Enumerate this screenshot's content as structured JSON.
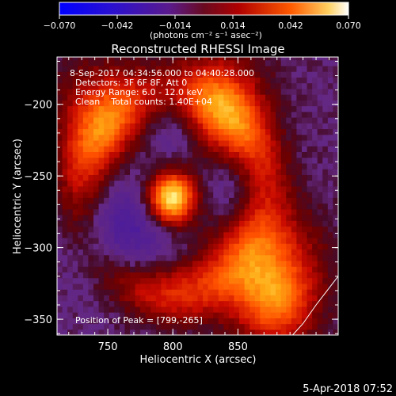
{
  "chart_data": {
    "type": "heatmap",
    "title": "Reconstructed RHESSI Image",
    "xlabel": "Heliocentric X (arcsec)",
    "ylabel": "Heliocentric Y (arcsec)",
    "xlim": [
      711,
      927
    ],
    "ylim": [
      -361,
      -167
    ],
    "x_ticks": [
      750,
      800,
      850
    ],
    "x_tick_labels": [
      "750",
      "800",
      "850"
    ],
    "y_ticks": [
      -200,
      -250,
      -300,
      -350
    ],
    "y_tick_labels": [
      "−200",
      "−250",
      "−300",
      "−350"
    ],
    "colorbar": {
      "min": -0.07,
      "max": 0.07,
      "ticks": [
        -0.07,
        -0.042,
        -0.014,
        0.014,
        0.042,
        0.07
      ],
      "tick_labels": [
        "−0.070",
        "−0.042",
        "−0.014",
        "0.014",
        "0.042",
        "0.070"
      ],
      "unit_label": "(photons cm⁻² s⁻¹ asec⁻²)",
      "colors": [
        "#0000ff",
        "#3a00a0",
        "#5a1a8c",
        "#8a0000",
        "#e01000",
        "#ff8a00",
        "#ffffff"
      ]
    },
    "annotations": [
      "8-Sep-2017 04:34:56.000 to 04:40:28.000",
      "Detectors: 3F 6F 8F, Att 0",
      "Energy Range: 6.0 - 12.0 keV",
      "Clean    Total counts: 1.40E+04",
      "Position of Peak = [799,-265]"
    ],
    "peak": {
      "x": 799,
      "y": -265,
      "value": 0.07
    },
    "sources": [
      {
        "kind": "peak",
        "x": 799,
        "y": -265,
        "value": 0.07,
        "spread": 12
      },
      {
        "kind": "ring",
        "x": 800,
        "y": -262,
        "value": 0.03,
        "radius": 70,
        "width": 14
      },
      {
        "kind": "blob",
        "x": 870,
        "y": -310,
        "value": 0.035,
        "spread": 28
      },
      {
        "kind": "blob",
        "x": 835,
        "y": -200,
        "value": 0.035,
        "spread": 24
      },
      {
        "kind": "blob",
        "x": 745,
        "y": -205,
        "value": 0.025,
        "spread": 25
      },
      {
        "kind": "blob",
        "x": 880,
        "y": -340,
        "value": 0.03,
        "spread": 20
      },
      {
        "kind": "hole",
        "x": 760,
        "y": -290,
        "value": -0.02,
        "spread": 25
      },
      {
        "kind": "hole",
        "x": 800,
        "y": -215,
        "value": -0.015,
        "spread": 18
      },
      {
        "kind": "hole",
        "x": 850,
        "y": -260,
        "value": -0.012,
        "spread": 18
      }
    ],
    "limb_arc": {
      "x": [
        927,
        910,
        900,
        892
      ],
      "y": [
        -320,
        -340,
        -353,
        -361
      ]
    }
  },
  "footer": {
    "date": "5-Apr-2018 07:52"
  },
  "colors": {
    "background": "#000000",
    "text": "#ffffff"
  }
}
